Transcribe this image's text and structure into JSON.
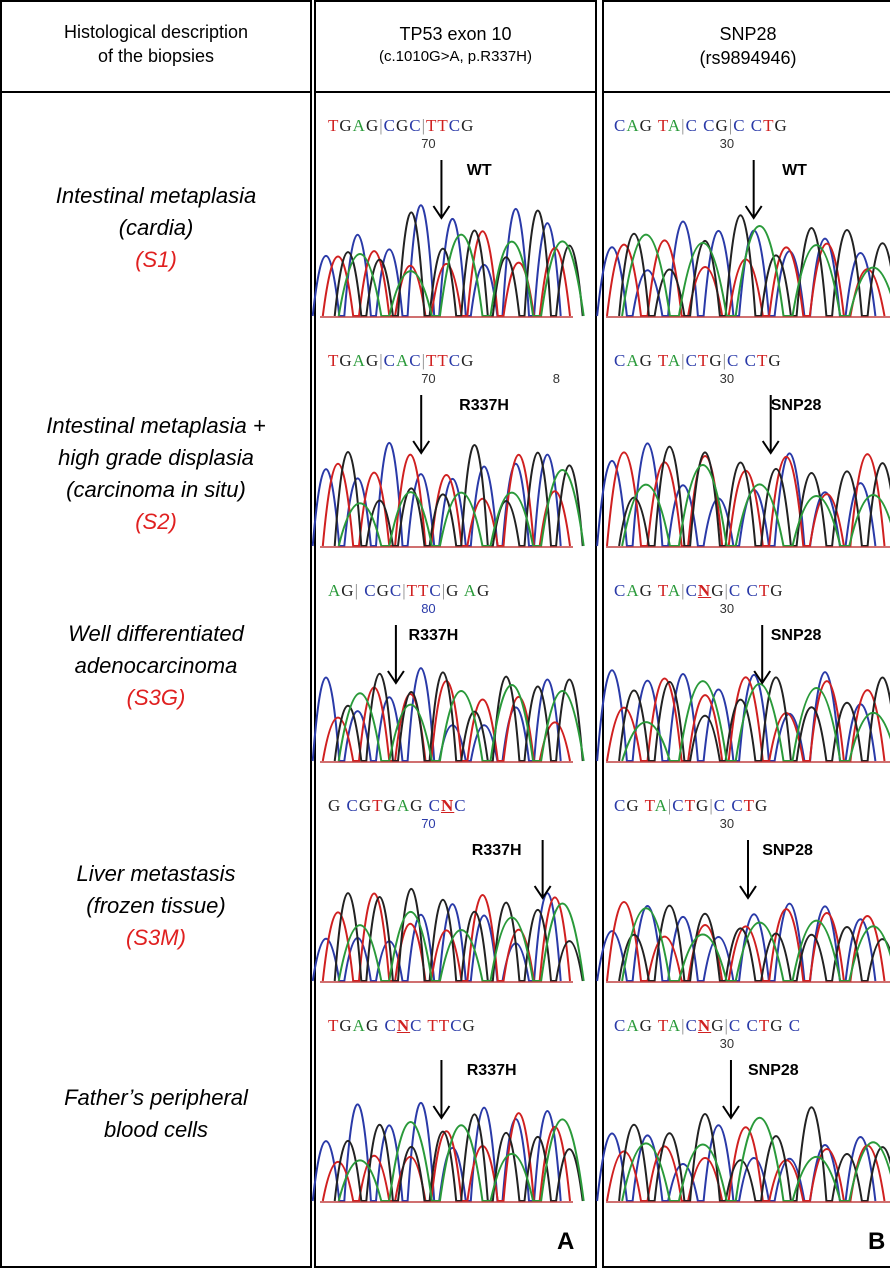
{
  "header": {
    "col1": {
      "line1": "Histological description",
      "line2": "of the biopsies"
    },
    "col2": {
      "line1": "TP53 exon 10",
      "line2": "(c.1010G>A, p.R337H)"
    },
    "col3": {
      "line1": "SNP28",
      "line2": "(rs9894946)"
    }
  },
  "rows": [
    {
      "desc": [
        "Intestinal metaplasia",
        "(cardia)"
      ],
      "code": "(S1)",
      "tp53_seq": "TGAG|CGC|TTCG",
      "tp53_nums": [
        "70"
      ],
      "tp53_label": "WT",
      "snp_seq": "CAG TA|C CG|C CTG",
      "snp_nums": [
        "30"
      ],
      "snp_label": "WT"
    },
    {
      "desc": [
        "Intestinal metaplasia +",
        "high grade displasia",
        "(carcinoma in situ)"
      ],
      "code": "(S2)",
      "tp53_seq": "TGAG|CAC|TTCG",
      "tp53_nums": [
        "70",
        "8"
      ],
      "tp53_label": "R337H",
      "snp_seq": "CAG TA|CTG|C CTG",
      "snp_nums": [
        "30"
      ],
      "snp_label": "SNP28"
    },
    {
      "desc": [
        "Well differentiated",
        "adenocarcinoma"
      ],
      "code": "(S3G)",
      "tp53_seq": "AG| CGC|TTC|G AG",
      "tp53_nums": [
        "80"
      ],
      "tp53_label": "R337H",
      "snp_seq": "CAG TA|CNG|C CTG",
      "snp_nums": [
        "30"
      ],
      "snp_label": "SNP28"
    },
    {
      "desc": [
        "Liver metastasis",
        "(frozen tissue)"
      ],
      "code": "(S3M)",
      "tp53_seq": "G CGTGAG CNC",
      "tp53_nums": [
        "70"
      ],
      "tp53_label": "R337H",
      "snp_seq": "CG TA|CTG|C CTG",
      "snp_nums": [
        "30"
      ],
      "snp_label": "SNP28"
    },
    {
      "desc": [
        "Father’s peripheral",
        "blood cells"
      ],
      "code": "",
      "tp53_seq": "TGAG CNC TTCG",
      "tp53_nums": [],
      "tp53_label": "R337H",
      "snp_seq": "CAG TA|CNG|C CTG C",
      "snp_nums": [
        "30"
      ],
      "snp_label": "SNP28"
    }
  ],
  "panel_labels": {
    "a": "A",
    "b": "B"
  },
  "colors": {
    "A": "#2a9a3a",
    "C": "#2a3aa8",
    "G": "#222222",
    "T": "#d02020",
    "N": "#d02020",
    "code": "#e02020"
  }
}
